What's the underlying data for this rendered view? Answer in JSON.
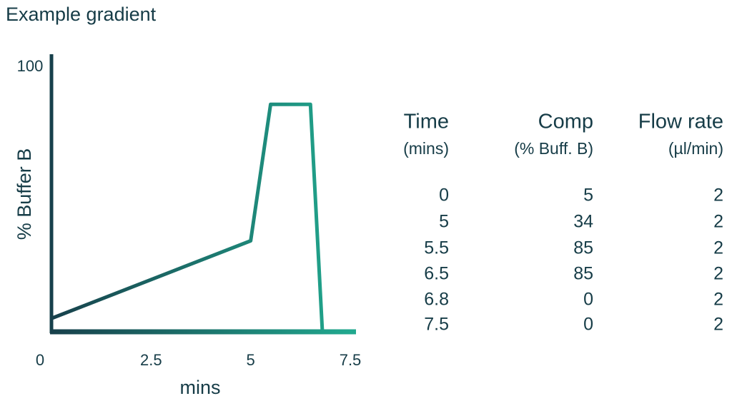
{
  "chart_data": {
    "type": "line",
    "title": "Example gradient",
    "x_label": "mins",
    "y_label": "% Buffer B",
    "x": [
      0,
      5,
      5.5,
      6.5,
      6.8,
      7.5
    ],
    "series": [
      {
        "values": [
          5,
          34,
          85,
          85,
          0,
          0
        ],
        "color_start": "#17404b",
        "color_end": "#21a98f"
      }
    ],
    "xlim": [
      0,
      7.5
    ],
    "xticks": [
      0,
      2.5,
      5,
      7.5
    ],
    "ylim": [
      0,
      100
    ],
    "yticks": [
      100
    ],
    "grid": false
  },
  "table": {
    "columns": [
      {
        "title": "Time",
        "unit": "(mins)"
      },
      {
        "title": "Comp",
        "unit": "(% Buff. B)"
      },
      {
        "title": "Flow rate",
        "unit": "(µl/min)"
      }
    ],
    "flow_rate": [
      2,
      2,
      2,
      2,
      2,
      2
    ]
  }
}
